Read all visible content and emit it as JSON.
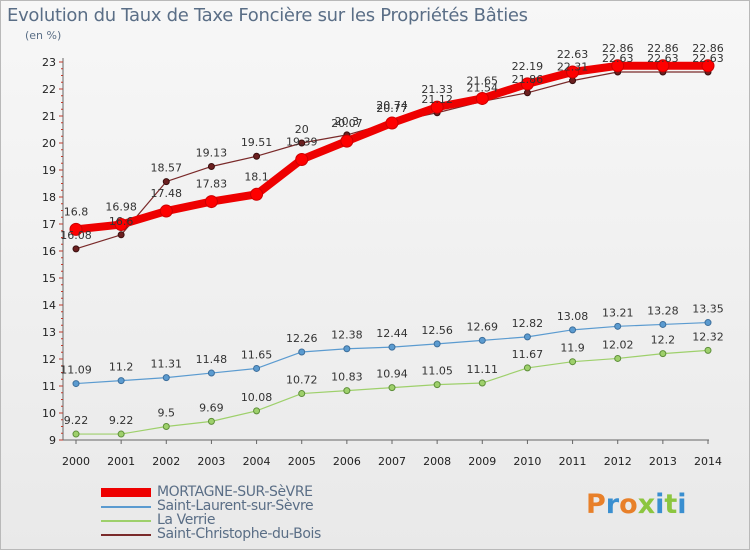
{
  "chart_data": {
    "type": "line",
    "title": "Evolution du Taux de Taxe Foncière sur les Propriétés Bâties",
    "unit_label": "(en %)",
    "xlabel": "",
    "ylabel": "",
    "categories": [
      "2000",
      "2001",
      "2002",
      "2003",
      "2004",
      "2005",
      "2006",
      "2007",
      "2008",
      "2009",
      "2010",
      "2011",
      "2012",
      "2013",
      "2014"
    ],
    "ylim": [
      9,
      23
    ],
    "yticks": [
      9,
      10,
      11,
      12,
      13,
      14,
      15,
      16,
      17,
      18,
      19,
      20,
      21,
      22,
      23
    ],
    "grid": false,
    "series": [
      {
        "name": "MORTAGNE-SUR-SèVRE",
        "color": "#ee0000",
        "values": [
          16.8,
          16.98,
          17.48,
          17.83,
          18.1,
          19.39,
          20.07,
          20.74,
          21.33,
          21.65,
          22.19,
          22.63,
          22.86,
          22.86,
          22.86
        ],
        "labels": [
          "16.8",
          "16.98",
          "17.48",
          "17.83",
          "18.1",
          "19.39",
          "20.07",
          "20.74",
          "21.33",
          "21.65",
          "22.19",
          "22.63",
          "22.86",
          "22.86",
          "22.86"
        ]
      },
      {
        "name": "Saint-Laurent-sur-Sèvre",
        "color": "#5b9bd0",
        "values": [
          11.09,
          11.2,
          11.31,
          11.48,
          11.65,
          12.26,
          12.38,
          12.44,
          12.56,
          12.69,
          12.82,
          13.08,
          13.21,
          13.28,
          13.35
        ],
        "labels": [
          "11.09",
          "11.2",
          "11.31",
          "11.48",
          "11.65",
          "12.26",
          "12.38",
          "12.44",
          "12.56",
          "12.69",
          "12.82",
          "13.08",
          "13.21",
          "13.28",
          "13.35"
        ]
      },
      {
        "name": "La Verrie",
        "color": "#9ed06b",
        "values": [
          9.22,
          9.22,
          9.5,
          9.69,
          10.08,
          10.72,
          10.83,
          10.94,
          11.05,
          11.11,
          11.67,
          11.9,
          12.02,
          12.2,
          12.32
        ],
        "labels": [
          "9.22",
          "9.22",
          "9.5",
          "9.69",
          "10.08",
          "10.72",
          "10.83",
          "10.94",
          "11.05",
          "11.11",
          "11.67",
          "11.9",
          "12.02",
          "12.2",
          "12.32"
        ]
      },
      {
        "name": "Saint-Christophe-du-Bois",
        "color": "#7a2a2a",
        "values": [
          16.08,
          16.6,
          18.57,
          19.13,
          19.51,
          20.0,
          20.3,
          20.77,
          21.12,
          21.54,
          21.86,
          22.31,
          22.63,
          22.63,
          22.63
        ],
        "labels": [
          "16.08",
          "16.6",
          "18.57",
          "19.13",
          "19.51",
          "20",
          "20.3",
          "20.77",
          "21.12",
          "21.54",
          "21.86",
          "22.31",
          "22.63",
          "22.63",
          "22.63"
        ]
      }
    ]
  },
  "brand": {
    "logo_text": "Proxiti",
    "logo_colors": [
      "#e8802a",
      "#3a8fd0",
      "#e8802a",
      "#8cc640",
      "#3a8fd0",
      "#8cc640",
      "#3a8fd0"
    ]
  }
}
